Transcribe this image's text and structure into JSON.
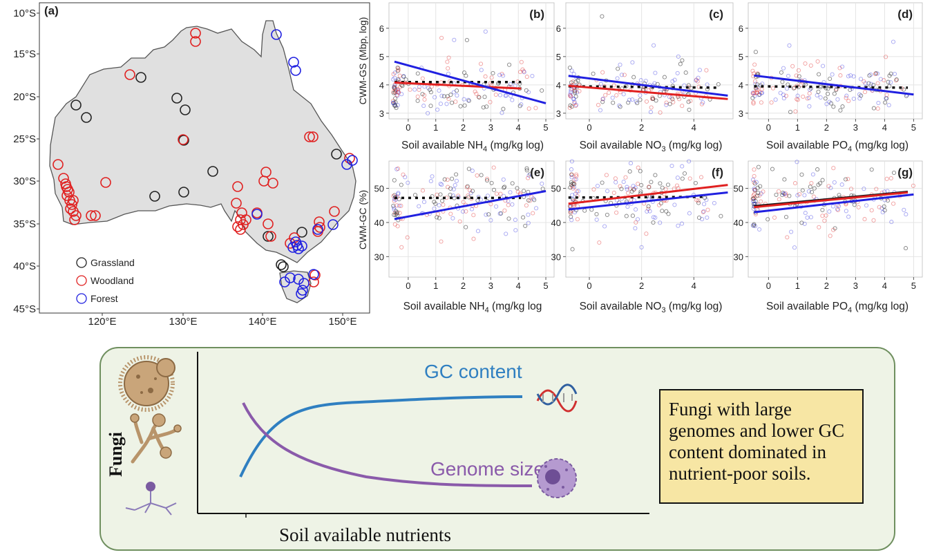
{
  "map_panel": {
    "label": "(a)",
    "lat_labels": [
      "10°S",
      "15°S",
      "20°S",
      "25°S",
      "30°S",
      "35°S",
      "40°S",
      "45°S"
    ],
    "lon_labels": [
      "120°E",
      "130°E",
      "140°E",
      "150°E"
    ],
    "legend": [
      {
        "name": "Grassland",
        "color": "#222222"
      },
      {
        "name": "Woodland",
        "color": "#e02020"
      },
      {
        "name": "Forest",
        "color": "#2020e0"
      }
    ]
  },
  "colors": {
    "grassland": "#222222",
    "woodland": "#e02020",
    "forest": "#2020e0",
    "land": "#e0e0e0",
    "panel_bg": "#ebebeb",
    "box_bg": "#eef3e6",
    "box_border": "#6f8f5f"
  },
  "chart_data": [
    {
      "panel": "(b)",
      "type": "scatter",
      "ylabel": "CWM-GS (Mbp, log)",
      "xlabel_main": "Soil available NH",
      "xlabel_sub": "4",
      "xlabel_unit": " (mg/kg log)",
      "x_ticks": [
        "0",
        "1",
        "2",
        "3",
        "4",
        "5"
      ],
      "x_range": [
        -0.7,
        5.3
      ],
      "y_ticks": [
        "3",
        "4",
        "5",
        "6"
      ],
      "y_range": [
        2.8,
        6.9
      ],
      "series": [
        {
          "name": "Grassland",
          "line": [
            [
              -0.5,
              4.1
            ],
            [
              4.1,
              4.1
            ]
          ],
          "dashed": true
        },
        {
          "name": "Woodland",
          "line": [
            [
              -0.5,
              4.08
            ],
            [
              4.1,
              3.87
            ]
          ]
        },
        {
          "name": "Forest",
          "line": [
            [
              -0.5,
              4.82
            ],
            [
              5.0,
              3.35
            ]
          ]
        }
      ]
    },
    {
      "panel": "(c)",
      "type": "scatter",
      "ylabel": "",
      "xlabel_main": "Soil available NO",
      "xlabel_sub": "3",
      "xlabel_unit": " (mg/kg log)",
      "x_ticks": [
        "0",
        "2",
        "4"
      ],
      "x_range": [
        -0.9,
        5.5
      ],
      "y_ticks": [
        "3",
        "4",
        "5",
        "6"
      ],
      "y_range": [
        2.8,
        6.9
      ],
      "series": [
        {
          "name": "Grassland",
          "line": [
            [
              -0.8,
              3.95
            ],
            [
              5.0,
              3.9
            ]
          ],
          "dashed": true
        },
        {
          "name": "Woodland",
          "line": [
            [
              -0.8,
              3.97
            ],
            [
              5.3,
              3.5
            ]
          ]
        },
        {
          "name": "Forest",
          "line": [
            [
              -0.8,
              4.32
            ],
            [
              5.3,
              3.62
            ]
          ]
        }
      ]
    },
    {
      "panel": "(d)",
      "type": "scatter",
      "ylabel": "",
      "xlabel_main": "Soil available PO",
      "xlabel_sub": "4",
      "xlabel_unit": " (mg/kg log)",
      "x_ticks": [
        "0",
        "1",
        "2",
        "3",
        "4",
        "5"
      ],
      "x_range": [
        -0.7,
        5.3
      ],
      "y_ticks": [
        "3",
        "4",
        "5",
        "6"
      ],
      "y_range": [
        2.8,
        6.9
      ],
      "series": [
        {
          "name": "Grassland",
          "line": [
            [
              -0.5,
              3.95
            ],
            [
              4.8,
              3.9
            ]
          ],
          "dashed": true
        },
        {
          "name": "Forest",
          "line": [
            [
              -0.5,
              4.33
            ],
            [
              5.0,
              3.66
            ]
          ]
        }
      ]
    },
    {
      "panel": "(e)",
      "type": "scatter",
      "ylabel": "CWM-GC (%)",
      "xlabel_main": "Soil available NH",
      "xlabel_sub": "4",
      "xlabel_unit": " (mg/kg log",
      "x_ticks": [
        "0",
        "1",
        "2",
        "3",
        "4",
        "5"
      ],
      "x_range": [
        -0.7,
        5.3
      ],
      "y_ticks": [
        "30",
        "40",
        "50"
      ],
      "y_range": [
        24,
        58
      ],
      "series": [
        {
          "name": "Grassland",
          "line": [
            [
              -0.5,
              47.2
            ],
            [
              4.1,
              47.2
            ]
          ],
          "dashed": true
        },
        {
          "name": "Forest",
          "line": [
            [
              -0.5,
              41.0
            ],
            [
              5.0,
              49.2
            ]
          ]
        }
      ]
    },
    {
      "panel": "(f)",
      "type": "scatter",
      "ylabel": "",
      "xlabel_main": "Soil available NO",
      "xlabel_sub": "3",
      "xlabel_unit": " (mg/kg log)",
      "x_ticks": [
        "0",
        "2",
        "4"
      ],
      "x_range": [
        -0.9,
        5.5
      ],
      "y_ticks": [
        "30",
        "40",
        "50"
      ],
      "y_range": [
        24,
        58
      ],
      "series": [
        {
          "name": "Grassland",
          "line": [
            [
              -0.8,
              47.3
            ],
            [
              4.5,
              47.5
            ]
          ],
          "dashed": true
        },
        {
          "name": "Woodland",
          "line": [
            [
              -0.8,
              45.5
            ],
            [
              5.3,
              51.0
            ]
          ]
        },
        {
          "name": "Forest",
          "line": [
            [
              -0.8,
              43.8
            ],
            [
              5.3,
              48.8
            ]
          ]
        }
      ]
    },
    {
      "panel": "(g)",
      "type": "scatter",
      "ylabel": "",
      "xlabel_main": "Soil available PO",
      "xlabel_sub": "4",
      "xlabel_unit": " (mg/kg log)",
      "x_ticks": [
        "0",
        "1",
        "2",
        "3",
        "4",
        "5"
      ],
      "x_range": [
        -0.7,
        5.3
      ],
      "y_ticks": [
        "30",
        "40",
        "50"
      ],
      "y_range": [
        24,
        58
      ],
      "series": [
        {
          "name": "Grassland",
          "line": [
            [
              -0.5,
              44.8
            ],
            [
              4.8,
              49.0
            ]
          ]
        },
        {
          "name": "Woodland",
          "line": [
            [
              -0.5,
              44.5
            ],
            [
              4.8,
              48.8
            ]
          ]
        },
        {
          "name": "Forest",
          "line": [
            [
              -0.5,
              43.0
            ],
            [
              5.0,
              48.2
            ]
          ]
        }
      ]
    }
  ],
  "graphic": {
    "ylabel": "Fungi",
    "xlabel": "Soil available nutrients",
    "gc_label": "GC content",
    "gs_label": "Genome size",
    "gc_color": "#2f7fc1",
    "gs_color": "#8a5aaa",
    "conclusion": "Fungi with large genomes and lower GC content dominated in nutrient-poor soils."
  }
}
